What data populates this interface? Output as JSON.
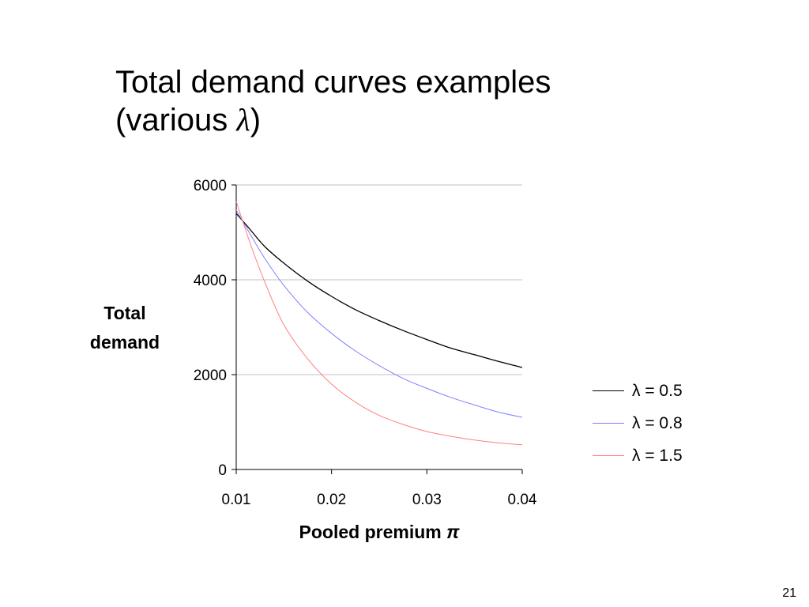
{
  "slide": {
    "title_line1": "Total demand curves examples",
    "title_line2_prefix": "(various ",
    "title_line2_symbol": "λ",
    "title_line2_suffix": ")",
    "page_number": "21"
  },
  "chart_data": {
    "type": "line",
    "title": "",
    "xlabel": "Pooled premium",
    "xlabel_symbol": "π",
    "ylabel_line1": "Total",
    "ylabel_line2": "demand",
    "xlim": [
      0.01,
      0.04
    ],
    "ylim": [
      0,
      6000
    ],
    "x_ticks": [
      0.01,
      0.02,
      0.03,
      0.04
    ],
    "x_tick_labels": [
      "0.01",
      "0.02",
      "0.03",
      "0.04"
    ],
    "y_ticks": [
      0,
      2000,
      4000,
      6000
    ],
    "y_tick_labels": [
      "0",
      "2000",
      "4000",
      "6000"
    ],
    "grid": "horizontal",
    "legend_position": "right",
    "x": [
      0.01,
      0.0115,
      0.013,
      0.015,
      0.0175,
      0.02,
      0.0225,
      0.025,
      0.0275,
      0.03,
      0.0325,
      0.035,
      0.0375,
      0.04
    ],
    "series": [
      {
        "name": "λ = 0.5",
        "color": "#000000",
        "values": [
          5400,
          5050,
          4700,
          4350,
          3970,
          3650,
          3370,
          3140,
          2930,
          2740,
          2560,
          2420,
          2280,
          2150
        ]
      },
      {
        "name": "λ = 0.8",
        "color": "#8080ff",
        "values": [
          5470,
          4950,
          4450,
          3880,
          3310,
          2870,
          2500,
          2190,
          1920,
          1710,
          1520,
          1360,
          1210,
          1100
        ]
      },
      {
        "name": "λ = 1.5",
        "color": "#ff8080",
        "values": [
          5650,
          4750,
          3950,
          3050,
          2330,
          1800,
          1420,
          1140,
          950,
          800,
          700,
          620,
          560,
          520
        ]
      }
    ]
  }
}
